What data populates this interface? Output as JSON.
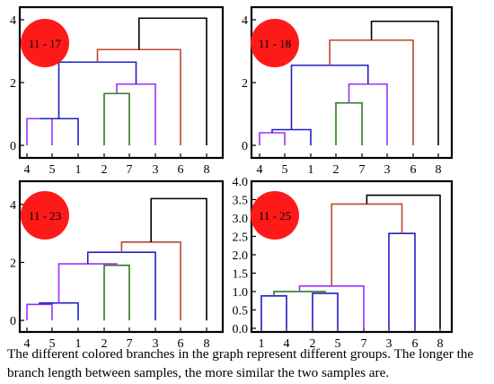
{
  "caption": "The different colored branches in the graph represent different groups. The longer the branch length between samples, the more similar the two samples are.",
  "colors": {
    "purple": "#9b30ff",
    "blue": "#2020c8",
    "green": "#2e7d1e",
    "brown": "#b84a2a",
    "black": "#000000",
    "badge": "#ff1a1a"
  },
  "chart_data": [
    {
      "type": "dendrogram",
      "badge": "11 - 17",
      "leaves": [
        "4",
        "5",
        "1",
        "2",
        "7",
        "3",
        "6",
        "8"
      ],
      "ylim": [
        -0.4,
        4.4
      ],
      "yticks": [
        0,
        2,
        4
      ],
      "branches": [
        {
          "left": 0,
          "right": 1,
          "height": 0.85,
          "color": "purple"
        },
        {
          "left": 8,
          "right": 2,
          "height": 0.85,
          "color": "blue"
        },
        {
          "left": 3,
          "right": 4,
          "height": 1.65,
          "color": "green"
        },
        {
          "left": 10,
          "right": 5,
          "height": 1.95,
          "color": "purple"
        },
        {
          "left": 9,
          "right": 11,
          "height": 2.65,
          "color": "blue"
        },
        {
          "left": 12,
          "right": 6,
          "height": 3.05,
          "color": "brown"
        },
        {
          "left": 13,
          "right": 7,
          "height": 4.05,
          "color": "black"
        }
      ]
    },
    {
      "type": "dendrogram",
      "badge": "11 - 18",
      "leaves": [
        "4",
        "5",
        "1",
        "2",
        "7",
        "3",
        "6",
        "8"
      ],
      "ylim": [
        -0.4,
        4.4
      ],
      "yticks": [
        0,
        2,
        4
      ],
      "branches": [
        {
          "left": 0,
          "right": 1,
          "height": 0.4,
          "color": "purple"
        },
        {
          "left": 8,
          "right": 2,
          "height": 0.5,
          "color": "blue"
        },
        {
          "left": 3,
          "right": 4,
          "height": 1.35,
          "color": "green"
        },
        {
          "left": 10,
          "right": 5,
          "height": 1.95,
          "color": "purple"
        },
        {
          "left": 9,
          "right": 11,
          "height": 2.55,
          "color": "blue"
        },
        {
          "left": 12,
          "right": 6,
          "height": 3.35,
          "color": "brown"
        },
        {
          "left": 13,
          "right": 7,
          "height": 3.95,
          "color": "black"
        }
      ]
    },
    {
      "type": "dendrogram",
      "badge": "11 - 23",
      "leaves": [
        "4",
        "5",
        "1",
        "2",
        "7",
        "3",
        "6",
        "8"
      ],
      "ylim": [
        -0.4,
        4.8
      ],
      "yticks": [
        0,
        2,
        4
      ],
      "branches": [
        {
          "left": 0,
          "right": 1,
          "height": 0.55,
          "color": "purple"
        },
        {
          "left": 8,
          "right": 2,
          "height": 0.6,
          "color": "blue"
        },
        {
          "left": 3,
          "right": 4,
          "height": 1.9,
          "color": "green"
        },
        {
          "left": 9,
          "right": 10,
          "height": 1.95,
          "color": "purple"
        },
        {
          "left": 11,
          "right": 5,
          "height": 2.35,
          "color": "blue"
        },
        {
          "left": 12,
          "right": 6,
          "height": 2.7,
          "color": "brown"
        },
        {
          "left": 13,
          "right": 7,
          "height": 4.2,
          "color": "black"
        }
      ]
    },
    {
      "type": "dendrogram",
      "badge": "11 - 25",
      "leaves": [
        "1",
        "4",
        "2",
        "5",
        "7",
        "3",
        "6",
        "8"
      ],
      "ylim": [
        -0.1,
        4.0
      ],
      "yticks": [
        0.0,
        0.5,
        1.0,
        1.5,
        2.0,
        2.5,
        3.0,
        3.5,
        4.0
      ],
      "branches": [
        {
          "left": 0,
          "right": 1,
          "height": 0.88,
          "color": "blue"
        },
        {
          "left": 2,
          "right": 3,
          "height": 0.95,
          "color": "blue"
        },
        {
          "left": 8,
          "right": 9,
          "height": 1.0,
          "color": "green"
        },
        {
          "left": 10,
          "right": 4,
          "height": 1.15,
          "color": "purple"
        },
        {
          "left": 5,
          "right": 6,
          "height": 2.58,
          "color": "blue"
        },
        {
          "left": 11,
          "right": 12,
          "height": 3.38,
          "color": "brown"
        },
        {
          "left": 13,
          "right": 7,
          "height": 3.62,
          "color": "black"
        }
      ]
    }
  ]
}
